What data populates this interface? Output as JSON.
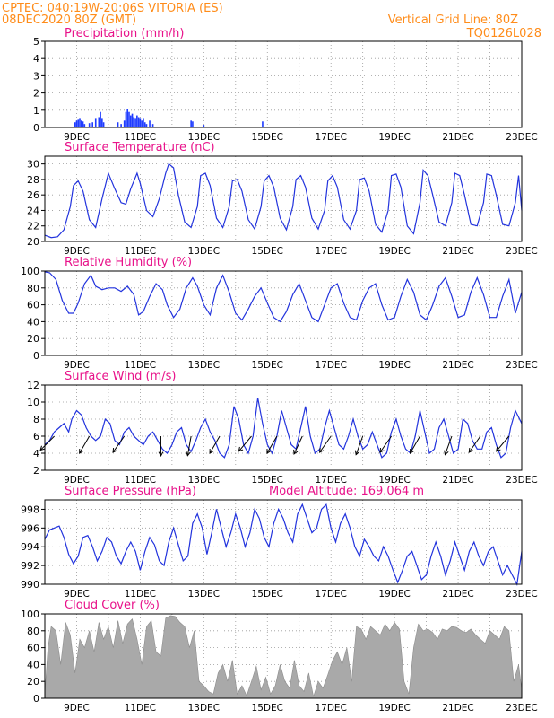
{
  "header": {
    "line1_left": "CPTEC:   040:19W-20:06S  VITORIA (ES)",
    "line2_left": "08DEC2020 80Z (GMT)",
    "line1_right": "Vertical Grid Line: 80Z",
    "line2_right": "TQ0126L028"
  },
  "colors": {
    "header": "#ff8c1a",
    "title": "#e8128a",
    "line": "#2233dd",
    "bar": "#1f3cff",
    "cloud": "#a9a9a9",
    "grid": "#999999"
  },
  "chart_data": [
    {
      "id": "precip",
      "type": "bar",
      "title": "Precipitation (mm/h)",
      "ylim": [
        0,
        5
      ],
      "yticks": [
        0,
        1,
        2,
        3,
        4,
        5
      ],
      "xlim": [
        0,
        15
      ],
      "xticks": [
        {
          "x": 1,
          "label": "9DEC"
        },
        {
          "x": 3,
          "label": "11DEC"
        },
        {
          "x": 5,
          "label": "13DEC"
        },
        {
          "x": 7,
          "label": "15DEC"
        },
        {
          "x": 9,
          "label": "17DEC"
        },
        {
          "x": 11,
          "label": "19DEC"
        },
        {
          "x": 13,
          "label": "21DEC"
        },
        {
          "x": 15,
          "label": "23DEC"
        }
      ],
      "x": [
        0.95,
        1.0,
        1.05,
        1.1,
        1.15,
        1.2,
        1.25,
        1.4,
        1.5,
        1.6,
        1.7,
        1.75,
        1.8,
        1.85,
        2.3,
        2.4,
        2.5,
        2.55,
        2.6,
        2.65,
        2.7,
        2.75,
        2.8,
        2.85,
        2.9,
        2.95,
        3.0,
        3.05,
        3.1,
        3.15,
        3.2,
        3.3,
        3.4,
        4.6,
        4.65,
        5.0,
        6.85
      ],
      "values": [
        0.3,
        0.4,
        0.45,
        0.5,
        0.4,
        0.35,
        0.2,
        0.25,
        0.3,
        0.5,
        0.6,
        0.9,
        0.5,
        0.3,
        0.3,
        0.2,
        0.4,
        0.9,
        1.05,
        0.9,
        0.7,
        0.8,
        0.6,
        0.5,
        0.7,
        0.6,
        0.5,
        0.4,
        0.5,
        0.3,
        0.2,
        0.4,
        0.2,
        0.4,
        0.35,
        0.15,
        0.35
      ]
    },
    {
      "id": "temp",
      "type": "line",
      "title": "Surface Temperature (nC)",
      "ylim": [
        20,
        31
      ],
      "yticks": [
        20,
        22,
        24,
        26,
        28,
        30
      ],
      "xlim": [
        0,
        15
      ],
      "xticks": [
        {
          "x": 1,
          "label": "9DEC"
        },
        {
          "x": 3,
          "label": "11DEC"
        },
        {
          "x": 5,
          "label": "13DEC"
        },
        {
          "x": 7,
          "label": "15DEC"
        },
        {
          "x": 9,
          "label": "17DEC"
        },
        {
          "x": 11,
          "label": "19DEC"
        },
        {
          "x": 13,
          "label": "21DEC"
        },
        {
          "x": 15,
          "label": "23DEC"
        }
      ],
      "x": [
        0,
        0.2,
        0.4,
        0.6,
        0.8,
        0.9,
        1.05,
        1.2,
        1.4,
        1.6,
        1.8,
        2.0,
        2.2,
        2.4,
        2.55,
        2.7,
        2.9,
        3.0,
        3.2,
        3.4,
        3.6,
        3.8,
        3.9,
        4.05,
        4.2,
        4.4,
        4.6,
        4.8,
        4.9,
        5.05,
        5.2,
        5.4,
        5.6,
        5.8,
        5.9,
        6.05,
        6.2,
        6.4,
        6.6,
        6.8,
        6.9,
        7.05,
        7.2,
        7.4,
        7.6,
        7.8,
        7.9,
        8.05,
        8.2,
        8.4,
        8.6,
        8.8,
        8.9,
        9.05,
        9.2,
        9.4,
        9.6,
        9.8,
        9.9,
        10.05,
        10.2,
        10.4,
        10.6,
        10.8,
        10.9,
        11.05,
        11.2,
        11.4,
        11.6,
        11.8,
        11.9,
        12.05,
        12.2,
        12.4,
        12.6,
        12.8,
        12.9,
        13.05,
        13.2,
        13.4,
        13.6,
        13.8,
        13.9,
        14.05,
        14.2,
        14.4,
        14.6,
        14.8,
        14.9,
        15.0
      ],
      "values": [
        20.8,
        20.5,
        20.6,
        21.5,
        24.5,
        27.2,
        27.8,
        26.5,
        22.8,
        21.8,
        25.5,
        28.8,
        26.8,
        25.0,
        24.8,
        26.8,
        28.8,
        27.5,
        24.0,
        23.2,
        25.5,
        28.8,
        30.0,
        29.5,
        26.0,
        22.5,
        21.8,
        24.5,
        28.5,
        28.8,
        27.2,
        23.0,
        21.8,
        24.5,
        27.8,
        28.0,
        26.5,
        22.8,
        21.6,
        24.5,
        27.8,
        28.5,
        27.0,
        23.0,
        21.5,
        24.5,
        28.0,
        28.5,
        27.0,
        23.0,
        21.6,
        24.0,
        27.8,
        28.5,
        27.0,
        22.8,
        21.6,
        24.0,
        28.0,
        28.2,
        26.5,
        22.2,
        21.2,
        24.0,
        28.5,
        28.7,
        27.0,
        22.0,
        21.0,
        25.0,
        29.2,
        28.5,
        26.0,
        22.5,
        22.0,
        25.0,
        28.8,
        28.5,
        26.0,
        22.2,
        22.0,
        25.0,
        28.7,
        28.5,
        26.0,
        22.2,
        22.0,
        25.0,
        28.5,
        24.0
      ]
    },
    {
      "id": "rh",
      "type": "line",
      "title": "Relative Humidity (%)",
      "ylim": [
        0,
        100
      ],
      "yticks": [
        0,
        20,
        40,
        60,
        80,
        100
      ],
      "xlim": [
        0,
        15
      ],
      "xticks": [
        {
          "x": 1,
          "label": "9DEC"
        },
        {
          "x": 3,
          "label": "11DEC"
        },
        {
          "x": 5,
          "label": "13DEC"
        },
        {
          "x": 7,
          "label": "15DEC"
        },
        {
          "x": 9,
          "label": "17DEC"
        },
        {
          "x": 11,
          "label": "19DEC"
        },
        {
          "x": 13,
          "label": "21DEC"
        },
        {
          "x": 15,
          "label": "23DEC"
        }
      ],
      "x": [
        0,
        0.15,
        0.35,
        0.55,
        0.75,
        0.9,
        1.05,
        1.25,
        1.45,
        1.6,
        1.8,
        2.0,
        2.2,
        2.4,
        2.6,
        2.8,
        2.95,
        3.1,
        3.3,
        3.5,
        3.7,
        3.85,
        4.05,
        4.25,
        4.45,
        4.65,
        4.8,
        5.0,
        5.2,
        5.4,
        5.6,
        5.8,
        6.0,
        6.2,
        6.4,
        6.6,
        6.8,
        7.0,
        7.2,
        7.4,
        7.6,
        7.8,
        8.0,
        8.2,
        8.4,
        8.6,
        8.8,
        9.0,
        9.2,
        9.4,
        9.6,
        9.8,
        10.0,
        10.2,
        10.4,
        10.6,
        10.8,
        11.0,
        11.2,
        11.4,
        11.6,
        11.8,
        12.0,
        12.2,
        12.4,
        12.6,
        12.8,
        13.0,
        13.2,
        13.4,
        13.6,
        13.8,
        14.0,
        14.2,
        14.4,
        14.6,
        14.8,
        15.0
      ],
      "values": [
        99,
        98,
        90,
        65,
        50,
        50,
        62,
        85,
        95,
        82,
        78,
        80,
        80,
        76,
        82,
        72,
        48,
        52,
        70,
        85,
        78,
        60,
        45,
        55,
        80,
        92,
        82,
        60,
        48,
        80,
        95,
        75,
        50,
        42,
        55,
        70,
        80,
        62,
        45,
        40,
        52,
        72,
        85,
        65,
        45,
        40,
        60,
        80,
        85,
        62,
        45,
        42,
        65,
        80,
        85,
        60,
        42,
        45,
        70,
        90,
        75,
        48,
        42,
        60,
        82,
        92,
        70,
        45,
        48,
        75,
        92,
        72,
        45,
        45,
        70,
        90,
        50,
        75
      ]
    },
    {
      "id": "wind",
      "type": "line",
      "title": "Surface Wind (m/s)",
      "ylim": [
        2,
        12
      ],
      "yticks": [
        2,
        4,
        6,
        8,
        10,
        12
      ],
      "xlim": [
        0,
        15
      ],
      "xticks": [
        {
          "x": 1,
          "label": "9DEC"
        },
        {
          "x": 3,
          "label": "11DEC"
        },
        {
          "x": 5,
          "label": "13DEC"
        },
        {
          "x": 7,
          "label": "15DEC"
        },
        {
          "x": 9,
          "label": "17DEC"
        },
        {
          "x": 11,
          "label": "19DEC"
        },
        {
          "x": 13,
          "label": "21DEC"
        },
        {
          "x": 15,
          "label": "23DEC"
        }
      ],
      "x": [
        0,
        0.15,
        0.3,
        0.45,
        0.6,
        0.75,
        0.85,
        1.0,
        1.15,
        1.3,
        1.45,
        1.6,
        1.75,
        1.9,
        2.05,
        2.2,
        2.35,
        2.5,
        2.65,
        2.8,
        2.95,
        3.1,
        3.25,
        3.4,
        3.55,
        3.7,
        3.85,
        4.0,
        4.15,
        4.3,
        4.45,
        4.6,
        4.75,
        4.9,
        5.05,
        5.2,
        5.35,
        5.5,
        5.65,
        5.8,
        5.95,
        6.1,
        6.25,
        6.4,
        6.55,
        6.7,
        6.85,
        7.0,
        7.15,
        7.3,
        7.45,
        7.6,
        7.75,
        7.9,
        8.05,
        8.2,
        8.35,
        8.5,
        8.65,
        8.8,
        8.95,
        9.1,
        9.25,
        9.4,
        9.55,
        9.7,
        9.85,
        10.0,
        10.15,
        10.3,
        10.45,
        10.6,
        10.75,
        10.9,
        11.05,
        11.2,
        11.35,
        11.5,
        11.65,
        11.8,
        11.95,
        12.1,
        12.25,
        12.4,
        12.55,
        12.7,
        12.85,
        13.0,
        13.15,
        13.3,
        13.45,
        13.6,
        13.75,
        13.9,
        14.05,
        14.2,
        14.35,
        14.5,
        14.65,
        14.8,
        15.0
      ],
      "values": [
        5.0,
        5.5,
        6.5,
        7.0,
        7.5,
        6.5,
        8.0,
        9.0,
        8.5,
        7.0,
        6.0,
        5.5,
        6.0,
        8.0,
        7.5,
        5.5,
        5.0,
        6.5,
        7.0,
        6.0,
        5.5,
        5.0,
        6.0,
        6.5,
        5.5,
        4.5,
        4.0,
        5.0,
        6.5,
        7.0,
        5.0,
        4.2,
        5.5,
        7.0,
        8.0,
        6.5,
        5.5,
        4.0,
        3.5,
        5.0,
        9.5,
        8.0,
        5.0,
        4.0,
        6.0,
        10.5,
        7.5,
        5.0,
        4.0,
        6.0,
        9.0,
        7.0,
        5.0,
        4.5,
        7.0,
        9.5,
        6.0,
        4.0,
        4.5,
        7.0,
        9.0,
        7.0,
        5.0,
        4.5,
        6.0,
        8.0,
        6.0,
        4.5,
        5.0,
        6.5,
        5.0,
        3.5,
        4.0,
        6.5,
        8.0,
        6.0,
        4.5,
        4.0,
        6.0,
        9.0,
        6.5,
        4.0,
        4.5,
        7.0,
        8.0,
        6.0,
        4.0,
        4.5,
        8.0,
        7.5,
        5.5,
        4.5,
        4.5,
        6.5,
        7.0,
        5.0,
        3.5,
        4.0,
        7.0,
        9.0,
        7.5
      ],
      "arrows_x": [
        0.3,
        1.4,
        2.5,
        3.65,
        4.6,
        5.5,
        6.5,
        7.3,
        8.1,
        9.0,
        10.0,
        10.9,
        11.8,
        12.8,
        13.7,
        14.6
      ],
      "arrows_deg": [
        225,
        240,
        235,
        270,
        260,
        240,
        230,
        240,
        245,
        235,
        250,
        235,
        240,
        250,
        235,
        230
      ]
    },
    {
      "id": "press",
      "type": "line",
      "title": "Surface Pressure (hPa)",
      "subtitle": "Model Altitude: 169.064 m",
      "ylim": [
        990,
        999
      ],
      "yticks": [
        990,
        992,
        994,
        996,
        998
      ],
      "xlim": [
        0,
        15
      ],
      "xticks": [
        {
          "x": 1,
          "label": "9DEC"
        },
        {
          "x": 3,
          "label": "11DEC"
        },
        {
          "x": 5,
          "label": "13DEC"
        },
        {
          "x": 7,
          "label": "15DEC"
        },
        {
          "x": 9,
          "label": "17DEC"
        },
        {
          "x": 11,
          "label": "19DEC"
        },
        {
          "x": 13,
          "label": "21DEC"
        },
        {
          "x": 15,
          "label": "23DEC"
        }
      ],
      "x": [
        0,
        0.15,
        0.3,
        0.45,
        0.6,
        0.75,
        0.9,
        1.05,
        1.2,
        1.35,
        1.5,
        1.65,
        1.8,
        1.95,
        2.1,
        2.25,
        2.4,
        2.55,
        2.7,
        2.85,
        3.0,
        3.15,
        3.3,
        3.45,
        3.6,
        3.75,
        3.9,
        4.05,
        4.2,
        4.35,
        4.5,
        4.65,
        4.8,
        4.95,
        5.1,
        5.25,
        5.4,
        5.55,
        5.7,
        5.85,
        6.0,
        6.15,
        6.3,
        6.45,
        6.6,
        6.75,
        6.9,
        7.05,
        7.2,
        7.35,
        7.5,
        7.65,
        7.8,
        7.95,
        8.1,
        8.25,
        8.4,
        8.55,
        8.7,
        8.85,
        9.0,
        9.15,
        9.3,
        9.45,
        9.6,
        9.75,
        9.9,
        10.05,
        10.2,
        10.35,
        10.5,
        10.65,
        10.8,
        10.95,
        11.1,
        11.25,
        11.4,
        11.55,
        11.7,
        11.85,
        12.0,
        12.15,
        12.3,
        12.45,
        12.6,
        12.75,
        12.9,
        13.05,
        13.2,
        13.35,
        13.5,
        13.65,
        13.8,
        13.95,
        14.1,
        14.25,
        14.4,
        14.55,
        14.7,
        14.85,
        15.0
      ],
      "values": [
        994.8,
        995.8,
        996.0,
        996.2,
        995.0,
        993.2,
        992.2,
        993.0,
        995.0,
        995.2,
        994.0,
        992.5,
        993.5,
        995.0,
        994.5,
        993.0,
        992.2,
        993.5,
        994.5,
        993.5,
        991.5,
        993.5,
        995.0,
        994.2,
        992.5,
        992.0,
        994.5,
        996.0,
        994.2,
        992.5,
        993.0,
        996.5,
        997.5,
        996.0,
        993.2,
        995.5,
        998.0,
        996.0,
        994.0,
        995.5,
        997.5,
        996.0,
        994.0,
        995.5,
        998.0,
        997.0,
        995.0,
        994.0,
        996.5,
        998.0,
        997.0,
        995.5,
        994.5,
        997.5,
        998.5,
        997.0,
        995.5,
        996.0,
        998.0,
        998.5,
        996.0,
        994.5,
        996.5,
        997.5,
        996.0,
        994.0,
        993.0,
        994.8,
        994.0,
        993.0,
        992.5,
        994.0,
        993.0,
        991.5,
        990.2,
        991.5,
        993.0,
        993.5,
        992.0,
        990.5,
        991.0,
        993.0,
        994.5,
        993.0,
        991.0,
        992.5,
        994.5,
        993.0,
        991.5,
        993.5,
        994.5,
        993.0,
        992.0,
        993.5,
        994.0,
        992.5,
        991.0,
        992.0,
        991.0,
        990.0,
        993.5
      ]
    },
    {
      "id": "cloud",
      "type": "area",
      "title": "Cloud Cover (%)",
      "ylim": [
        0,
        100
      ],
      "yticks": [
        0,
        20,
        40,
        60,
        80,
        100
      ],
      "xlim": [
        0,
        15
      ],
      "xticks": [
        {
          "x": 1,
          "label": "9DEC"
        },
        {
          "x": 3,
          "label": "11DEC"
        },
        {
          "x": 5,
          "label": "13DEC"
        },
        {
          "x": 7,
          "label": "15DEC"
        },
        {
          "x": 9,
          "label": "17DEC"
        },
        {
          "x": 11,
          "label": "19DEC"
        },
        {
          "x": 13,
          "label": "21DEC"
        },
        {
          "x": 15,
          "label": "23DEC"
        }
      ],
      "x": [
        0,
        0.1,
        0.2,
        0.35,
        0.5,
        0.65,
        0.8,
        0.95,
        1.1,
        1.25,
        1.4,
        1.55,
        1.7,
        1.85,
        2.0,
        2.15,
        2.3,
        2.45,
        2.6,
        2.75,
        2.9,
        3.05,
        3.2,
        3.35,
        3.5,
        3.65,
        3.8,
        3.95,
        4.1,
        4.25,
        4.4,
        4.55,
        4.7,
        4.85,
        5.0,
        5.15,
        5.3,
        5.45,
        5.6,
        5.75,
        5.9,
        6.05,
        6.2,
        6.35,
        6.5,
        6.65,
        6.8,
        6.95,
        7.1,
        7.25,
        7.4,
        7.55,
        7.7,
        7.85,
        8.0,
        8.15,
        8.3,
        8.45,
        8.6,
        8.75,
        8.9,
        9.05,
        9.2,
        9.35,
        9.5,
        9.65,
        9.8,
        9.95,
        10.1,
        10.25,
        10.4,
        10.55,
        10.7,
        10.85,
        11.0,
        11.15,
        11.3,
        11.45,
        11.6,
        11.75,
        11.9,
        12.05,
        12.2,
        12.35,
        12.5,
        12.65,
        12.8,
        12.95,
        13.1,
        13.25,
        13.4,
        13.55,
        13.7,
        13.85,
        14.0,
        14.15,
        14.3,
        14.45,
        14.6,
        14.75,
        14.9,
        15.0
      ],
      "values": [
        5,
        60,
        85,
        80,
        40,
        90,
        75,
        30,
        70,
        60,
        80,
        55,
        90,
        70,
        85,
        60,
        92,
        65,
        88,
        94,
        70,
        40,
        85,
        92,
        55,
        50,
        95,
        98,
        97,
        90,
        85,
        60,
        80,
        20,
        15,
        8,
        5,
        30,
        40,
        20,
        45,
        5,
        15,
        3,
        20,
        38,
        10,
        25,
        5,
        15,
        40,
        20,
        12,
        45,
        15,
        8,
        30,
        2,
        20,
        12,
        28,
        45,
        55,
        40,
        60,
        20,
        85,
        82,
        70,
        85,
        80,
        75,
        88,
        80,
        90,
        82,
        20,
        5,
        60,
        88,
        80,
        82,
        78,
        70,
        82,
        80,
        85,
        84,
        80,
        78,
        82,
        75,
        70,
        65,
        80,
        75,
        70,
        85,
        80,
        20,
        40,
        10
      ]
    }
  ]
}
